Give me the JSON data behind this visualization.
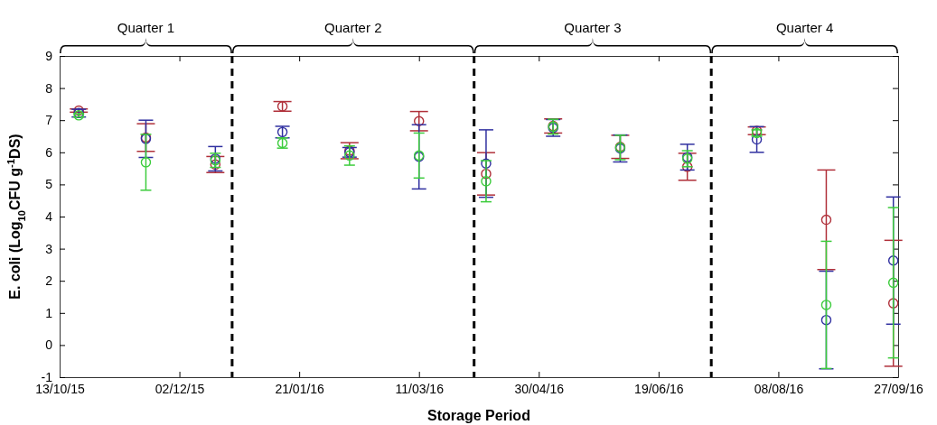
{
  "chart_data": {
    "type": "scatter",
    "xlabel": "Storage Period",
    "ylabel": "E. coli (Log$_{10}$CFU g$^{-1}$DS)",
    "x": [
      "2015-10-21",
      "2015-11-18",
      "2015-12-17",
      "2016-01-14",
      "2016-02-11",
      "2016-03-11",
      "2016-04-08",
      "2016-05-06",
      "2016-06-03",
      "2016-07-01",
      "2016-07-30",
      "2016-08-28",
      "2016-09-25"
    ],
    "series": [
      {
        "color": "#b0303a",
        "marker": "circle",
        "values": [
          7.3,
          6.46,
          5.62,
          7.43,
          6.05,
          6.97,
          5.33,
          6.82,
          6.17,
          5.55,
          6.67,
          3.9,
          1.3
        ],
        "errors": [
          0.05,
          0.43,
          0.25,
          0.15,
          0.25,
          0.3,
          0.66,
          0.22,
          0.36,
          0.42,
          0.12,
          1.55,
          1.96
        ]
      },
      {
        "color": "#3030a0",
        "marker": "circle",
        "values": [
          7.22,
          6.42,
          5.8,
          6.63,
          6.0,
          5.86,
          5.65,
          6.76,
          6.12,
          5.85,
          6.4,
          0.78,
          2.63
        ],
        "errors": [
          0.12,
          0.58,
          0.38,
          0.18,
          0.15,
          1.0,
          1.05,
          0.26,
          0.42,
          0.4,
          0.4,
          1.52,
          1.98
        ]
      },
      {
        "color": "#3ccc3c",
        "marker": "circle",
        "values": [
          7.15,
          5.69,
          5.75,
          6.29,
          5.9,
          5.9,
          5.1,
          6.8,
          6.15,
          5.8,
          6.6,
          1.25,
          1.94
        ],
        "errors": [
          0.05,
          0.87,
          0.22,
          0.16,
          0.3,
          0.7,
          0.64,
          0.23,
          0.38,
          0.25,
          0.1,
          1.98,
          2.34
        ]
      }
    ],
    "xlim": [
      "2015-10-13",
      "2016-09-27"
    ],
    "xticks": [
      {
        "value": "2015-10-13",
        "label": "13/10/15"
      },
      {
        "value": "2015-12-02",
        "label": "02/12/15"
      },
      {
        "value": "2016-01-21",
        "label": "21/01/16"
      },
      {
        "value": "2016-03-11",
        "label": "11/03/16"
      },
      {
        "value": "2016-04-30",
        "label": "30/04/16"
      },
      {
        "value": "2016-06-19",
        "label": "19/06/16"
      },
      {
        "value": "2016-08-08",
        "label": "08/08/16"
      },
      {
        "value": "2016-09-27",
        "label": "27/09/16"
      }
    ],
    "ylim": [
      -1,
      9
    ],
    "yticks": [
      -1,
      0,
      1,
      2,
      3,
      4,
      5,
      6,
      7,
      8,
      9
    ],
    "ref_lines": [
      {
        "axis": "x",
        "value": "2015-12-24",
        "line_style": "dashed",
        "color": "#000000"
      },
      {
        "axis": "x",
        "value": "2016-04-03",
        "line_style": "dashed",
        "color": "#000000"
      },
      {
        "axis": "x",
        "value": "2016-07-11",
        "line_style": "dashed",
        "color": "#000000"
      }
    ],
    "annotations": [
      "Quarter 1",
      "Quarter 2",
      "Quarter 3",
      "Quarter 4"
    ]
  }
}
